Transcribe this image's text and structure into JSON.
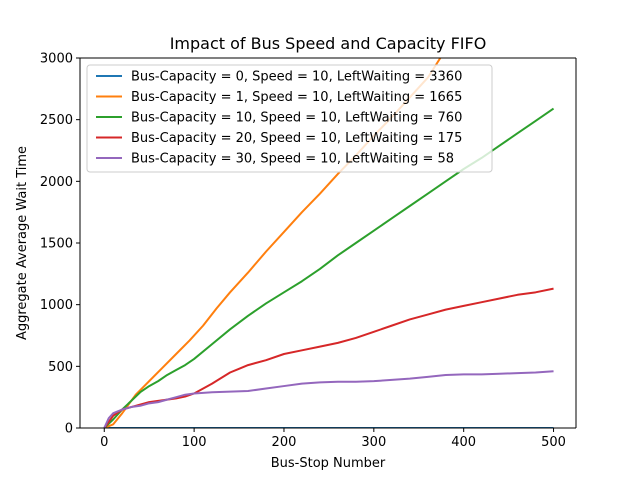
{
  "chart_data": {
    "type": "line",
    "title": "Impact of Bus Speed and Capacity FIFO",
    "xlabel": "Bus-Stop Number",
    "ylabel": "Aggregate Average Wait Time",
    "xlim": [
      -27,
      525
    ],
    "ylim": [
      0,
      3000
    ],
    "xticks": [
      0,
      100,
      200,
      300,
      400,
      500
    ],
    "yticks": [
      0,
      500,
      1000,
      1500,
      2000,
      2500,
      3000
    ],
    "grid": false,
    "legend_position": "upper-left",
    "series": [
      {
        "name": "Bus-Capacity = 0, Speed = 10, LeftWaiting = 3360",
        "color": "#1f77b4",
        "x": [
          0,
          500
        ],
        "y": [
          0,
          0
        ]
      },
      {
        "name": "Bus-Capacity = 1, Speed = 10, LeftWaiting = 1665",
        "color": "#ff7f0e",
        "x": [
          0,
          10,
          20,
          35,
          50,
          65,
          80,
          95,
          110,
          125,
          140,
          160,
          180,
          200,
          220,
          240,
          260,
          280,
          300,
          320,
          340,
          360,
          374
        ],
        "y": [
          0,
          30,
          120,
          270,
          380,
          490,
          600,
          710,
          830,
          970,
          1100,
          1260,
          1430,
          1590,
          1750,
          1900,
          2060,
          2210,
          2370,
          2520,
          2680,
          2840,
          3000
        ]
      },
      {
        "name": "Bus-Capacity = 10, Speed = 10, LeftWaiting = 760",
        "color": "#2ca02c",
        "x": [
          0,
          10,
          20,
          30,
          40,
          50,
          60,
          70,
          80,
          90,
          100,
          120,
          140,
          160,
          180,
          200,
          220,
          240,
          260,
          280,
          300,
          320,
          340,
          360,
          380,
          400,
          420,
          440,
          460,
          480,
          500
        ],
        "y": [
          0,
          70,
          150,
          220,
          290,
          340,
          380,
          430,
          470,
          510,
          560,
          680,
          800,
          910,
          1010,
          1100,
          1190,
          1290,
          1400,
          1500,
          1600,
          1700,
          1800,
          1900,
          2000,
          2100,
          2190,
          2290,
          2390,
          2490,
          2590
        ]
      },
      {
        "name": "Bus-Capacity = 20, Speed = 10, LeftWaiting = 175",
        "color": "#d62728",
        "x": [
          0,
          10,
          20,
          30,
          40,
          50,
          60,
          70,
          80,
          90,
          100,
          120,
          140,
          150,
          160,
          180,
          200,
          220,
          240,
          260,
          280,
          300,
          320,
          340,
          360,
          380,
          400,
          420,
          440,
          460,
          480,
          500
        ],
        "y": [
          0,
          100,
          150,
          170,
          190,
          210,
          220,
          230,
          240,
          255,
          280,
          360,
          450,
          480,
          510,
          550,
          600,
          630,
          660,
          690,
          730,
          780,
          830,
          880,
          920,
          960,
          990,
          1020,
          1050,
          1080,
          1100,
          1130
        ]
      },
      {
        "name": "Bus-Capacity = 30, Speed = 10, LeftWaiting = 58",
        "color": "#9467bd",
        "x": [
          0,
          5,
          10,
          20,
          30,
          40,
          50,
          60,
          70,
          80,
          90,
          100,
          120,
          140,
          160,
          180,
          200,
          220,
          240,
          260,
          280,
          300,
          320,
          340,
          360,
          380,
          400,
          420,
          440,
          460,
          480,
          500
        ],
        "y": [
          0,
          80,
          120,
          150,
          170,
          180,
          200,
          210,
          230,
          250,
          270,
          280,
          290,
          295,
          300,
          320,
          340,
          360,
          370,
          375,
          375,
          380,
          390,
          400,
          415,
          430,
          435,
          435,
          440,
          445,
          450,
          460
        ]
      }
    ]
  }
}
